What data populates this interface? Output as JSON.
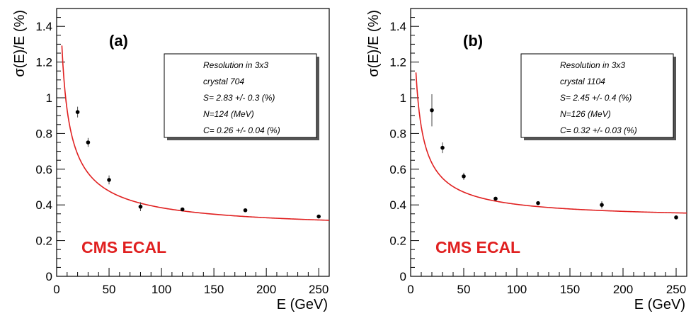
{
  "chart_data": [
    {
      "type": "scatter",
      "panel_label": "(a)",
      "xlabel": "E (GeV)",
      "ylabel": "σ(E)/E (%)",
      "xlim": [
        0,
        260
      ],
      "ylim": [
        0,
        1.5
      ],
      "xticks": [
        0,
        50,
        100,
        150,
        200,
        250
      ],
      "yticks": [
        0,
        0.2,
        0.4,
        0.6,
        0.8,
        1,
        1.2,
        1.4
      ],
      "xtick_labels": [
        "0",
        "50",
        "100",
        "150",
        "200",
        "250"
      ],
      "ytick_labels": [
        "0",
        "0.2",
        "0.4",
        "0.6",
        "0.8",
        "1",
        "1.2",
        "1.4"
      ],
      "fit": {
        "S": 2.83,
        "N": 0.124,
        "C": 0.26,
        "color": "#e02020"
      },
      "points": [
        {
          "x": 20,
          "y": 0.92,
          "err": 0.03
        },
        {
          "x": 30,
          "y": 0.75,
          "err": 0.025
        },
        {
          "x": 50,
          "y": 0.54,
          "err": 0.025
        },
        {
          "x": 80,
          "y": 0.39,
          "err": 0.025
        },
        {
          "x": 120,
          "y": 0.375,
          "err": 0.01
        },
        {
          "x": 180,
          "y": 0.37,
          "err": 0.01
        },
        {
          "x": 250,
          "y": 0.335,
          "err": 0.01
        }
      ],
      "legend": [
        "Resolution in 3x3",
        "crystal 704",
        "S= 2.83 +/- 0.3 (%)",
        "N=124 (MeV)",
        "C= 0.26 +/- 0.04 (%)"
      ],
      "watermark": "CMS ECAL",
      "watermark_color": "#e02020"
    },
    {
      "type": "scatter",
      "panel_label": "(b)",
      "xlabel": "E (GeV)",
      "ylabel": "σ(E)/E (%)",
      "xlim": [
        0,
        260
      ],
      "ylim": [
        0,
        1.5
      ],
      "xticks": [
        0,
        50,
        100,
        150,
        200,
        250
      ],
      "yticks": [
        0,
        0.2,
        0.4,
        0.6,
        0.8,
        1,
        1.2,
        1.4
      ],
      "xtick_labels": [
        "0",
        "50",
        "100",
        "150",
        "200",
        "250"
      ],
      "ytick_labels": [
        "0",
        "0.2",
        "0.4",
        "0.6",
        "0.8",
        "1",
        "1.2",
        "1.4"
      ],
      "fit": {
        "S": 2.45,
        "N": 0.126,
        "C": 0.32,
        "color": "#e02020"
      },
      "points": [
        {
          "x": 20,
          "y": 0.93,
          "err": 0.09
        },
        {
          "x": 30,
          "y": 0.72,
          "err": 0.03
        },
        {
          "x": 50,
          "y": 0.56,
          "err": 0.02
        },
        {
          "x": 80,
          "y": 0.435,
          "err": 0.01
        },
        {
          "x": 120,
          "y": 0.41,
          "err": 0.01
        },
        {
          "x": 180,
          "y": 0.4,
          "err": 0.02
        },
        {
          "x": 250,
          "y": 0.33,
          "err": 0.01
        }
      ],
      "legend": [
        "Resolution in 3x3",
        "crystal 1104",
        "S= 2.45 +/- 0.4 (%)",
        "N=126 (MeV)",
        "C= 0.32 +/- 0.03 (%)"
      ],
      "watermark": "CMS ECAL",
      "watermark_color": "#e02020"
    }
  ]
}
